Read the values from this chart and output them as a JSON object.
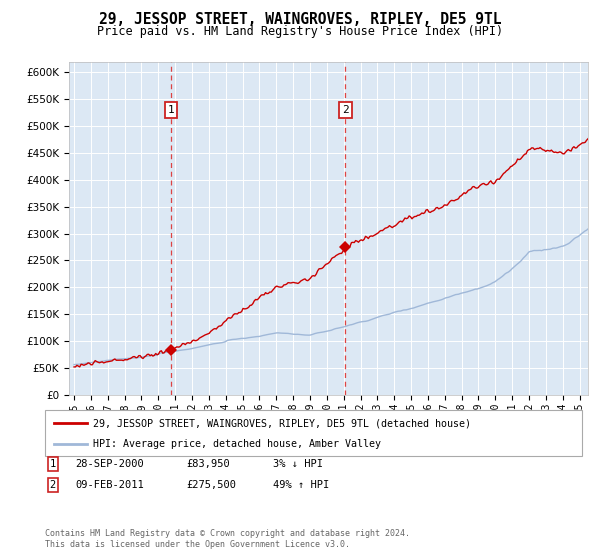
{
  "title": "29, JESSOP STREET, WAINGROVES, RIPLEY, DE5 9TL",
  "subtitle": "Price paid vs. HM Land Registry's House Price Index (HPI)",
  "legend_line1": "29, JESSOP STREET, WAINGROVES, RIPLEY, DE5 9TL (detached house)",
  "legend_line2": "HPI: Average price, detached house, Amber Valley",
  "footer": "Contains HM Land Registry data © Crown copyright and database right 2024.\nThis data is licensed under the Open Government Licence v3.0.",
  "transactions": [
    {
      "num": 1,
      "date": "28-SEP-2000",
      "price": 83950,
      "pct": "3%",
      "dir": "↓"
    },
    {
      "num": 2,
      "date": "09-FEB-2011",
      "price": 275500,
      "pct": "49%",
      "dir": "↑"
    }
  ],
  "transaction_years": [
    2000.75,
    2011.1
  ],
  "transaction_prices": [
    83950,
    275500
  ],
  "hpi_color": "#a0b8d8",
  "property_color": "#cc0000",
  "vline_color": "#dd4444",
  "background_color": "#dce8f4",
  "ylim": [
    0,
    620000
  ],
  "xlim_start": 1994.7,
  "xlim_end": 2025.5
}
